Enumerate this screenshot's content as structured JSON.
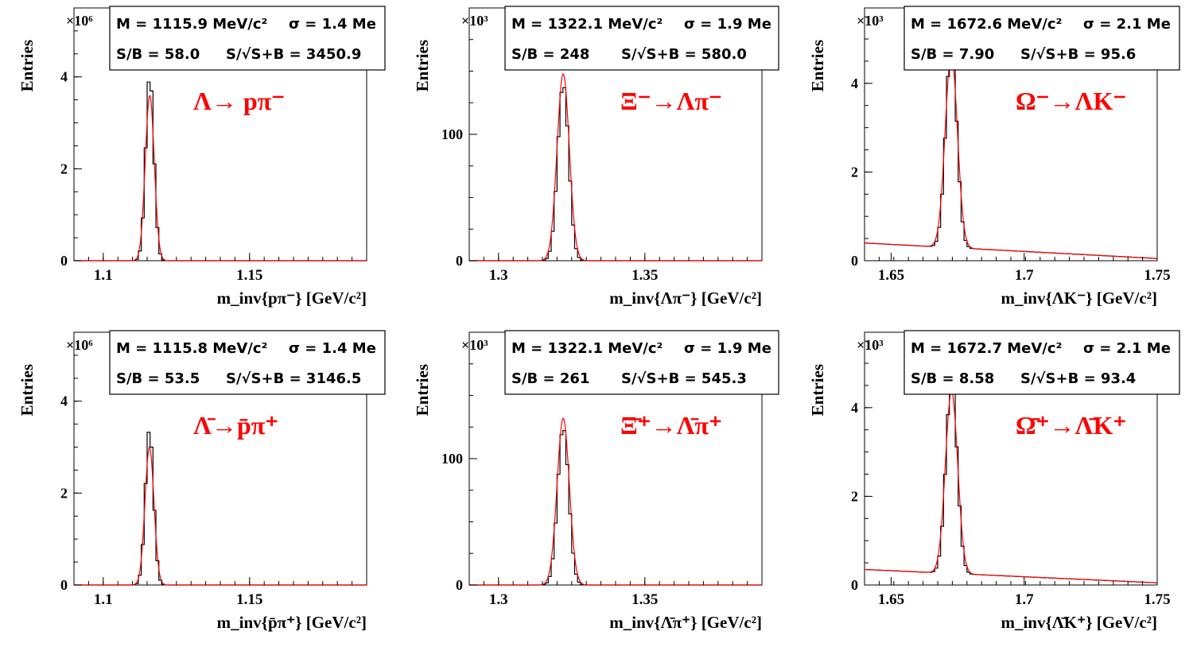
{
  "chart_data": [
    {
      "type": "histogram",
      "decay": "Λ→ pπ⁻",
      "xlabel": "m_inv{pπ⁻} [GeV/c²]",
      "ylabel": "Entries",
      "y_multiplier": "×10⁶",
      "xlim": [
        1.09,
        1.19
      ],
      "ylim": [
        0,
        5.5
      ],
      "xticks": [
        1.1,
        1.15
      ],
      "yticks": [
        0,
        2,
        4
      ],
      "stats": {
        "mass": "M = 1115.9 MeV/c²",
        "sigma": "σ = 1.4 Me",
        "sb": "S/B = 58.0",
        "signif": "S/√S+B = 3450.9"
      },
      "peak": {
        "mean": 1.1159,
        "sigma": 0.0014,
        "height": 4.05,
        "fit_height": 3.6
      },
      "background": {
        "left": 0.0,
        "right": 0.0
      }
    },
    {
      "type": "histogram",
      "decay": "Ξ⁻→Λπ⁻",
      "xlabel": "m_inv{Λπ⁻} [GeV/c²]",
      "ylabel": "Entries",
      "y_multiplier": "×10³",
      "xlim": [
        1.29,
        1.39
      ],
      "ylim": [
        0,
        200
      ],
      "xticks": [
        1.3,
        1.35
      ],
      "yticks": [
        0,
        100
      ],
      "stats": {
        "mass": "M = 1322.1 MeV/c²",
        "sigma": "σ = 1.9 Me",
        "sb": "S/B = 248",
        "signif": "S/√S+B = 580.0"
      },
      "peak": {
        "mean": 1.3221,
        "sigma": 0.0019,
        "height": 140,
        "fit_height": 148
      },
      "background": {
        "left": 0.0,
        "right": 0.0
      }
    },
    {
      "type": "histogram",
      "decay": "Ω⁻→ΛK⁻",
      "xlabel": "m_inv{ΛK⁻} [GeV/c²]",
      "ylabel": "Entries",
      "y_multiplier": "×10³",
      "xlim": [
        1.64,
        1.75
      ],
      "ylim": [
        0,
        5.7
      ],
      "xticks": [
        1.65,
        1.7,
        1.75
      ],
      "yticks": [
        0,
        2,
        4
      ],
      "stats": {
        "mass": "M = 1672.6 MeV/c²",
        "sigma": "σ = 2.1 Me",
        "sb": "S/B = 7.90",
        "signif": "S/√S+B = 95.6"
      },
      "peak": {
        "mean": 1.6726,
        "sigma": 0.0021,
        "height": 4.6,
        "fit_height": 4.35
      },
      "background": {
        "left": 0.4,
        "right": 0.05
      }
    },
    {
      "type": "histogram",
      "decay": "Λ̄→p̄π⁺",
      "xlabel": "m_inv{p̄π⁺} [GeV/c²]",
      "ylabel": "Entries",
      "y_multiplier": "×10⁶",
      "xlim": [
        1.09,
        1.19
      ],
      "ylim": [
        0,
        5.5
      ],
      "xticks": [
        1.1,
        1.15
      ],
      "yticks": [
        0,
        2,
        4
      ],
      "stats": {
        "mass": "M = 1115.8 MeV/c²",
        "sigma": "σ = 1.4 Me",
        "sb": "S/B = 53.5",
        "signif": "S/√S+B = 3146.5"
      },
      "peak": {
        "mean": 1.1158,
        "sigma": 0.0014,
        "height": 3.4,
        "fit_height": 3.0
      },
      "background": {
        "left": 0.0,
        "right": 0.0
      }
    },
    {
      "type": "histogram",
      "decay": "Ξ̄⁺→Λ̄π⁺",
      "xlabel": "m_inv{Λ̄π⁺} [GeV/c²]",
      "ylabel": "Entries",
      "y_multiplier": "×10³",
      "xlim": [
        1.29,
        1.39
      ],
      "ylim": [
        0,
        200
      ],
      "xticks": [
        1.3,
        1.35
      ],
      "yticks": [
        0,
        100
      ],
      "stats": {
        "mass": "M = 1322.1 MeV/c²",
        "sigma": "σ = 1.9 Me",
        "sb": "S/B = 261",
        "signif": "S/√S+B = 545.3"
      },
      "peak": {
        "mean": 1.3221,
        "sigma": 0.0019,
        "height": 125,
        "fit_height": 132
      },
      "background": {
        "left": 0.0,
        "right": 0.0
      }
    },
    {
      "type": "histogram",
      "decay": "Ω̄⁺→Λ̄K⁺",
      "xlabel": "m_inv{Λ̄K⁺} [GeV/c²]",
      "ylabel": "Entries",
      "y_multiplier": "×10³",
      "xlim": [
        1.64,
        1.75
      ],
      "ylim": [
        0,
        5.7
      ],
      "xticks": [
        1.65,
        1.7,
        1.75
      ],
      "yticks": [
        0,
        2,
        4
      ],
      "stats": {
        "mass": "M = 1672.7 MeV/c²",
        "sigma": "σ = 2.1 Me",
        "sb": "S/B = 8.58",
        "signif": "S/√S+B = 93.4"
      },
      "peak": {
        "mean": 1.6727,
        "sigma": 0.0021,
        "height": 4.4,
        "fit_height": 4.1
      },
      "background": {
        "left": 0.35,
        "right": 0.05
      }
    }
  ],
  "colors": {
    "histogram": "#000000",
    "fit": "#ff0000",
    "title": "#ff0000",
    "frame": "#000000"
  }
}
